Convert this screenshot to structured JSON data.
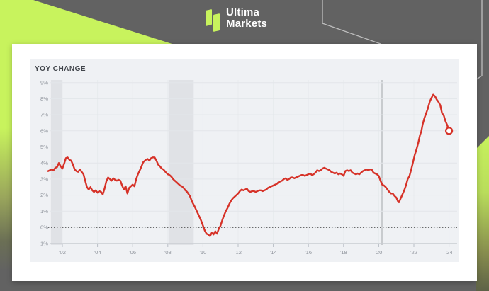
{
  "brand": {
    "line1": "Ultima",
    "line2": "Markets"
  },
  "colors": {
    "lime_accent": "#c8f35d",
    "header_gray": "#626262",
    "card_white": "#ffffff",
    "line_red": "#d63228",
    "panel_bg": "#eff1f4",
    "recession_band": "#e0e2e6",
    "pandemic_band": "#c8cbce",
    "tick_text": "#8f949c",
    "title_text": "#41454b"
  },
  "chart_data": {
    "type": "line",
    "title": "YOY CHANGE",
    "xlabel": "",
    "ylabel": "",
    "ylim": [
      -1,
      9
    ],
    "xlim": [
      2001.15,
      2024.5
    ],
    "grid": true,
    "legend": "none",
    "zero_line": 0,
    "background": "#eff1f4",
    "y_ticks": [
      {
        "label": "9%",
        "value": 9
      },
      {
        "label": "8%",
        "value": 8
      },
      {
        "label": "7%",
        "value": 7
      },
      {
        "label": "6%",
        "value": 6
      },
      {
        "label": "5%",
        "value": 5
      },
      {
        "label": "4%",
        "value": 4
      },
      {
        "label": "3%",
        "value": 3
      },
      {
        "label": "2%",
        "value": 2
      },
      {
        "label": "1%",
        "value": 1
      },
      {
        "label": "0%",
        "value": 0
      },
      {
        "label": "-1%",
        "value": -1
      }
    ],
    "x_ticks": [
      {
        "label": "'02",
        "year": 2002
      },
      {
        "label": "'04",
        "year": 2004
      },
      {
        "label": "'06",
        "year": 2006
      },
      {
        "label": "'08",
        "year": 2008
      },
      {
        "label": "'10",
        "year": 2010
      },
      {
        "label": "'12",
        "year": 2012
      },
      {
        "label": "'14",
        "year": 2014
      },
      {
        "label": "'16",
        "year": 2016
      },
      {
        "label": "'18",
        "year": 2018
      },
      {
        "label": "'20",
        "year": 2020
      },
      {
        "label": "'22",
        "year": 2022
      },
      {
        "label": "'24",
        "year": 2024
      }
    ],
    "recession_bands": [
      {
        "from": 2001.35,
        "to": 2001.96,
        "color": "#e0e2e6"
      },
      {
        "from": 2008.04,
        "to": 2009.47,
        "color": "#e0e2e6"
      },
      {
        "from": 2020.12,
        "to": 2020.26,
        "color": "#c8cbce"
      }
    ],
    "end_marker": {
      "x": 2024.0,
      "y": 6.0
    },
    "series": [
      {
        "name": "YoY Change",
        "color": "#d63228",
        "points": [
          [
            2001.19,
            3.5
          ],
          [
            2001.3,
            3.55
          ],
          [
            2001.4,
            3.6
          ],
          [
            2001.5,
            3.55
          ],
          [
            2001.6,
            3.7
          ],
          [
            2001.7,
            3.75
          ],
          [
            2001.8,
            4.0
          ],
          [
            2001.9,
            3.8
          ],
          [
            2002.0,
            3.65
          ],
          [
            2002.1,
            3.95
          ],
          [
            2002.2,
            4.3
          ],
          [
            2002.3,
            4.35
          ],
          [
            2002.4,
            4.2
          ],
          [
            2002.5,
            4.15
          ],
          [
            2002.6,
            3.9
          ],
          [
            2002.7,
            3.6
          ],
          [
            2002.8,
            3.5
          ],
          [
            2002.9,
            3.45
          ],
          [
            2003.0,
            3.6
          ],
          [
            2003.1,
            3.45
          ],
          [
            2003.2,
            3.3
          ],
          [
            2003.3,
            2.9
          ],
          [
            2003.4,
            2.5
          ],
          [
            2003.5,
            2.35
          ],
          [
            2003.6,
            2.5
          ],
          [
            2003.7,
            2.3
          ],
          [
            2003.8,
            2.2
          ],
          [
            2003.9,
            2.3
          ],
          [
            2004.0,
            2.15
          ],
          [
            2004.1,
            2.25
          ],
          [
            2004.2,
            2.2
          ],
          [
            2004.3,
            2.05
          ],
          [
            2004.4,
            2.4
          ],
          [
            2004.5,
            2.85
          ],
          [
            2004.6,
            3.1
          ],
          [
            2004.7,
            3.0
          ],
          [
            2004.8,
            2.9
          ],
          [
            2004.9,
            3.05
          ],
          [
            2005.0,
            2.95
          ],
          [
            2005.1,
            2.9
          ],
          [
            2005.2,
            2.95
          ],
          [
            2005.3,
            2.9
          ],
          [
            2005.4,
            2.6
          ],
          [
            2005.5,
            2.35
          ],
          [
            2005.6,
            2.55
          ],
          [
            2005.7,
            2.1
          ],
          [
            2005.8,
            2.45
          ],
          [
            2005.9,
            2.55
          ],
          [
            2006.0,
            2.65
          ],
          [
            2006.1,
            2.55
          ],
          [
            2006.2,
            3.0
          ],
          [
            2006.3,
            3.3
          ],
          [
            2006.45,
            3.65
          ],
          [
            2006.6,
            4.05
          ],
          [
            2006.75,
            4.2
          ],
          [
            2006.85,
            4.25
          ],
          [
            2006.95,
            4.15
          ],
          [
            2007.05,
            4.3
          ],
          [
            2007.15,
            4.35
          ],
          [
            2007.25,
            4.35
          ],
          [
            2007.35,
            4.15
          ],
          [
            2007.45,
            3.9
          ],
          [
            2007.55,
            3.8
          ],
          [
            2007.65,
            3.65
          ],
          [
            2007.75,
            3.6
          ],
          [
            2007.9,
            3.4
          ],
          [
            2008.0,
            3.3
          ],
          [
            2008.1,
            3.25
          ],
          [
            2008.2,
            3.15
          ],
          [
            2008.3,
            3.0
          ],
          [
            2008.4,
            2.9
          ],
          [
            2008.5,
            2.8
          ],
          [
            2008.6,
            2.7
          ],
          [
            2008.7,
            2.6
          ],
          [
            2008.8,
            2.55
          ],
          [
            2008.9,
            2.45
          ],
          [
            2009.0,
            2.3
          ],
          [
            2009.1,
            2.2
          ],
          [
            2009.25,
            1.95
          ],
          [
            2009.4,
            1.55
          ],
          [
            2009.5,
            1.35
          ],
          [
            2009.65,
            1.0
          ],
          [
            2009.8,
            0.65
          ],
          [
            2009.9,
            0.4
          ],
          [
            2010.0,
            0.1
          ],
          [
            2010.1,
            -0.2
          ],
          [
            2010.2,
            -0.4
          ],
          [
            2010.3,
            -0.45
          ],
          [
            2010.4,
            -0.55
          ],
          [
            2010.5,
            -0.35
          ],
          [
            2010.6,
            -0.45
          ],
          [
            2010.7,
            -0.25
          ],
          [
            2010.8,
            -0.4
          ],
          [
            2010.9,
            -0.1
          ],
          [
            2011.0,
            0.1
          ],
          [
            2011.1,
            0.45
          ],
          [
            2011.2,
            0.75
          ],
          [
            2011.3,
            1.0
          ],
          [
            2011.4,
            1.2
          ],
          [
            2011.5,
            1.45
          ],
          [
            2011.6,
            1.65
          ],
          [
            2011.7,
            1.8
          ],
          [
            2011.8,
            1.9
          ],
          [
            2011.9,
            2.0
          ],
          [
            2012.0,
            2.1
          ],
          [
            2012.1,
            2.25
          ],
          [
            2012.2,
            2.35
          ],
          [
            2012.3,
            2.3
          ],
          [
            2012.4,
            2.35
          ],
          [
            2012.5,
            2.4
          ],
          [
            2012.6,
            2.25
          ],
          [
            2012.7,
            2.2
          ],
          [
            2012.8,
            2.25
          ],
          [
            2012.9,
            2.25
          ],
          [
            2013.0,
            2.2
          ],
          [
            2013.1,
            2.25
          ],
          [
            2013.2,
            2.3
          ],
          [
            2013.3,
            2.3
          ],
          [
            2013.4,
            2.25
          ],
          [
            2013.5,
            2.3
          ],
          [
            2013.6,
            2.35
          ],
          [
            2013.7,
            2.45
          ],
          [
            2013.8,
            2.5
          ],
          [
            2013.9,
            2.55
          ],
          [
            2014.0,
            2.6
          ],
          [
            2014.1,
            2.65
          ],
          [
            2014.2,
            2.7
          ],
          [
            2014.3,
            2.8
          ],
          [
            2014.4,
            2.85
          ],
          [
            2014.5,
            2.9
          ],
          [
            2014.6,
            3.0
          ],
          [
            2014.7,
            3.05
          ],
          [
            2014.8,
            2.95
          ],
          [
            2014.9,
            3.0
          ],
          [
            2015.0,
            3.1
          ],
          [
            2015.1,
            3.1
          ],
          [
            2015.2,
            3.05
          ],
          [
            2015.3,
            3.1
          ],
          [
            2015.4,
            3.15
          ],
          [
            2015.5,
            3.2
          ],
          [
            2015.6,
            3.25
          ],
          [
            2015.7,
            3.25
          ],
          [
            2015.8,
            3.2
          ],
          [
            2015.9,
            3.25
          ],
          [
            2016.0,
            3.3
          ],
          [
            2016.1,
            3.35
          ],
          [
            2016.2,
            3.25
          ],
          [
            2016.3,
            3.3
          ],
          [
            2016.4,
            3.4
          ],
          [
            2016.5,
            3.55
          ],
          [
            2016.6,
            3.5
          ],
          [
            2016.7,
            3.55
          ],
          [
            2016.8,
            3.65
          ],
          [
            2016.9,
            3.7
          ],
          [
            2017.0,
            3.65
          ],
          [
            2017.1,
            3.6
          ],
          [
            2017.2,
            3.55
          ],
          [
            2017.3,
            3.45
          ],
          [
            2017.4,
            3.4
          ],
          [
            2017.5,
            3.35
          ],
          [
            2017.6,
            3.4
          ],
          [
            2017.7,
            3.3
          ],
          [
            2017.8,
            3.35
          ],
          [
            2017.9,
            3.3
          ],
          [
            2018.0,
            3.2
          ],
          [
            2018.1,
            3.5
          ],
          [
            2018.2,
            3.55
          ],
          [
            2018.3,
            3.5
          ],
          [
            2018.4,
            3.55
          ],
          [
            2018.5,
            3.4
          ],
          [
            2018.6,
            3.35
          ],
          [
            2018.7,
            3.3
          ],
          [
            2018.8,
            3.35
          ],
          [
            2018.9,
            3.3
          ],
          [
            2019.0,
            3.4
          ],
          [
            2019.1,
            3.5
          ],
          [
            2019.2,
            3.55
          ],
          [
            2019.3,
            3.6
          ],
          [
            2019.4,
            3.55
          ],
          [
            2019.5,
            3.6
          ],
          [
            2019.6,
            3.6
          ],
          [
            2019.7,
            3.4
          ],
          [
            2019.8,
            3.35
          ],
          [
            2019.9,
            3.3
          ],
          [
            2020.0,
            3.2
          ],
          [
            2020.1,
            2.9
          ],
          [
            2020.2,
            2.65
          ],
          [
            2020.3,
            2.6
          ],
          [
            2020.4,
            2.5
          ],
          [
            2020.5,
            2.35
          ],
          [
            2020.6,
            2.2
          ],
          [
            2020.7,
            2.1
          ],
          [
            2020.8,
            2.1
          ],
          [
            2020.9,
            1.95
          ],
          [
            2021.0,
            1.85
          ],
          [
            2021.1,
            1.6
          ],
          [
            2021.15,
            1.55
          ],
          [
            2021.25,
            1.8
          ],
          [
            2021.35,
            2.05
          ],
          [
            2021.45,
            2.3
          ],
          [
            2021.55,
            2.6
          ],
          [
            2021.65,
            3.0
          ],
          [
            2021.75,
            3.2
          ],
          [
            2021.85,
            3.6
          ],
          [
            2021.95,
            4.05
          ],
          [
            2022.05,
            4.5
          ],
          [
            2022.15,
            4.85
          ],
          [
            2022.25,
            5.25
          ],
          [
            2022.35,
            5.75
          ],
          [
            2022.42,
            5.95
          ],
          [
            2022.5,
            6.4
          ],
          [
            2022.6,
            6.8
          ],
          [
            2022.7,
            7.1
          ],
          [
            2022.8,
            7.4
          ],
          [
            2022.9,
            7.8
          ],
          [
            2023.0,
            8.05
          ],
          [
            2023.1,
            8.25
          ],
          [
            2023.2,
            8.15
          ],
          [
            2023.3,
            7.95
          ],
          [
            2023.4,
            7.8
          ],
          [
            2023.5,
            7.6
          ],
          [
            2023.6,
            7.1
          ],
          [
            2023.7,
            6.95
          ],
          [
            2023.8,
            6.6
          ],
          [
            2023.9,
            6.35
          ],
          [
            2024.0,
            6.0
          ]
        ]
      }
    ]
  }
}
